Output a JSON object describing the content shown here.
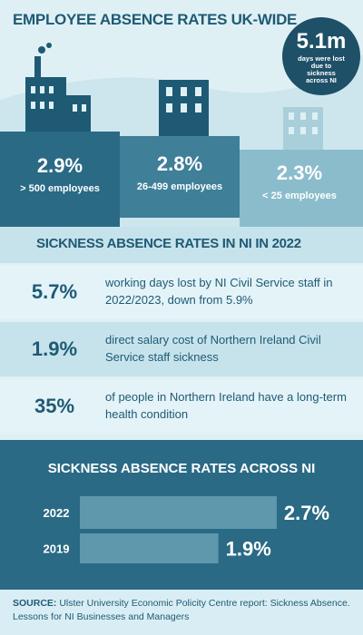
{
  "header": {
    "title": "EMPLOYEE ABSENCE RATES UK-WIDE",
    "callout_value": "5.1m",
    "callout_text": "days were lost due to sickness across NI"
  },
  "uk_rates": [
    {
      "rate": "2.9%",
      "label": "> 500 employees"
    },
    {
      "rate": "2.8%",
      "label": "26-499 employees"
    },
    {
      "rate": "2.3%",
      "label": "< 25 employees"
    }
  ],
  "ni_2022": {
    "title": "SICKNESS ABSENCE RATES IN NI IN 2022",
    "rows": [
      {
        "stat": "5.7%",
        "text": "working days lost by NI Civil Service staff in 2022/2023, down from 5.9%"
      },
      {
        "stat": "1.9%",
        "text": "direct salary cost of Northern Ireland Civil Service staff sickness"
      },
      {
        "stat": "35%",
        "text": "of people in Northern Ireland have a long-term health condition"
      }
    ]
  },
  "chart_data": {
    "type": "bar",
    "orientation": "horizontal",
    "title": "SICKNESS ABSENCE RATES ACROSS NI",
    "categories": [
      "2022",
      "2019"
    ],
    "values": [
      2.7,
      1.9
    ],
    "value_labels": [
      "2.7%",
      "1.9%"
    ],
    "color": "#5f98ad",
    "xlim": [
      0,
      3
    ]
  },
  "source": {
    "label": "SOURCE:",
    "text": "Ulster University Economic Policity Centre report: Sickness Absence. Lessons for NI Businesses and Managers"
  }
}
